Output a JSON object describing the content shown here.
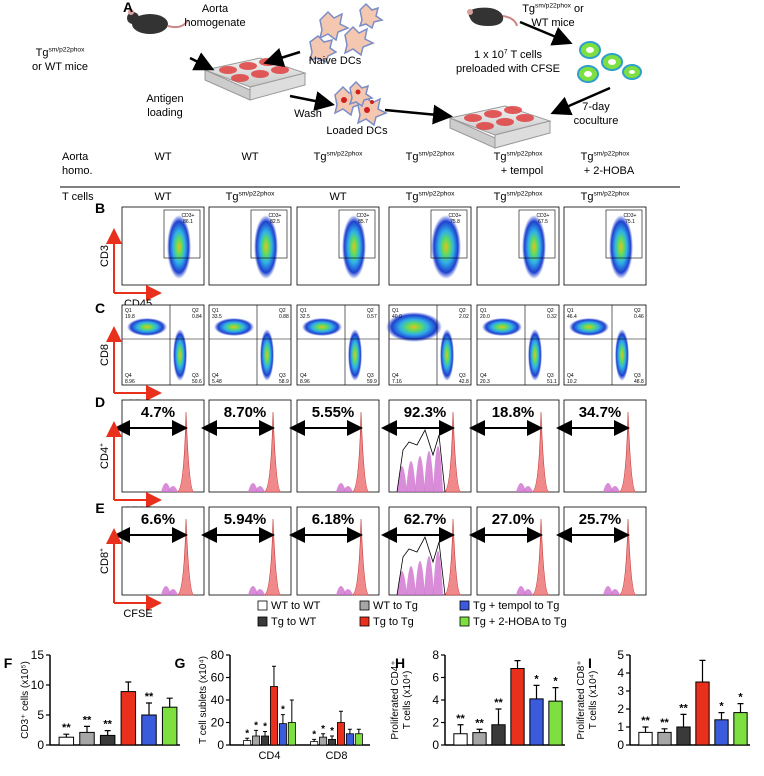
{
  "panel_labels": [
    "A",
    "B",
    "C",
    "D",
    "E",
    "F",
    "G",
    "H",
    "I"
  ],
  "schematic": {
    "mouse_left": {
      "base": "Tg",
      "sup": "sm/p22phox",
      "line2": "or WT mice"
    },
    "aorta": [
      "Aorta",
      "homogenate"
    ],
    "naive_dcs": "Naive DCs",
    "antigen_loading": [
      "Antigen",
      "loading"
    ],
    "wash": "Wash",
    "loaded_dcs": "Loaded DCs",
    "mouse_right": {
      "base": "Tg",
      "sup": "sm/p22phox",
      "post": " or",
      "line2": "WT mice"
    },
    "t_cells": {
      "pre": "1 x 10",
      "sup": "7",
      "post": " T cells",
      "line2": "preloaded with CFSE"
    },
    "coculture": [
      "7-day",
      "coculture"
    ]
  },
  "conditions": {
    "aorta_label": [
      "Aorta",
      "homo."
    ],
    "tcell_label": "T cells",
    "columns": [
      {
        "aorta": {
          "base": "WT"
        },
        "tcells": {
          "base": "WT"
        }
      },
      {
        "aorta": {
          "base": "WT"
        },
        "tcells": {
          "base": "Tg",
          "sup": "sm/p22phox"
        }
      },
      {
        "aorta": {
          "base": "Tg",
          "sup": "sm/p22phox"
        },
        "tcells": {
          "base": "WT"
        }
      },
      {
        "aorta": {
          "base": "Tg",
          "sup": "sm/p22phox"
        },
        "tcells": {
          "base": "Tg",
          "sup": "sm/p22phox"
        }
      },
      {
        "aorta": {
          "base": "Tg",
          "sup": "sm/p22phox",
          "extra": "+ tempol"
        },
        "tcells": {
          "base": "Tg",
          "sup": "sm/p22phox"
        }
      },
      {
        "aorta": {
          "base": "Tg",
          "sup": "sm/p22phox",
          "extra": "+ 2-HOBA"
        },
        "tcells": {
          "base": "Tg",
          "sup": "sm/p22phox"
        }
      }
    ]
  },
  "flow_b": {
    "ylabel": "CD3",
    "xlabel": "CD45",
    "gate_name": "CD3+",
    "gates": [
      "86.1",
      "82.5",
      "85.7",
      "75.8",
      "67.5",
      "75.1"
    ]
  },
  "flow_c": {
    "ylabel": "CD8",
    "xlabel": "CD4",
    "quadrant_names": [
      "Q1",
      "Q2",
      "Q3",
      "Q4"
    ],
    "plots": [
      [
        "19.8",
        "0.84",
        "50.6",
        "8.96"
      ],
      [
        "33.5",
        "0.88",
        "58.9",
        "5.48"
      ],
      [
        "32.5",
        "0.57",
        "59.9",
        "8.96"
      ],
      [
        "40.0",
        "2.02",
        "42.8",
        "7.16"
      ],
      [
        "20.0",
        "0.32",
        "51.1",
        "20.3"
      ],
      [
        "46.4",
        "0.46",
        "48.8",
        "10.2"
      ]
    ]
  },
  "flow_d": {
    "ylabel": {
      "base": "CD4",
      "sup": "+"
    },
    "xlabel": "CFSE",
    "percents": [
      "4.7%",
      "8.70%",
      "5.55%",
      "92.3%",
      "18.8%",
      "34.7%"
    ]
  },
  "flow_e": {
    "ylabel": {
      "base": "CD8",
      "sup": "+"
    },
    "xlabel": "CFSE",
    "percents": [
      "6.6%",
      "5.94%",
      "6.18%",
      "62.7%",
      "27.0%",
      "25.7%"
    ]
  },
  "chart_data": [
    {
      "type": "bar",
      "ylabel": "CD3⁺ cells (x10⁵)",
      "values": [
        1.3,
        2.1,
        1.6,
        8.9,
        5.0,
        6.3
      ],
      "errors": [
        0.5,
        1.0,
        0.8,
        1.6,
        2.0,
        1.5
      ],
      "significance": [
        "**",
        "**",
        "**",
        null,
        "**",
        null
      ],
      "colors": [
        "#ffffff",
        "#a6a6a6",
        "#3a3a3a",
        "#e8301c",
        "#3a5bdc",
        "#7ee040"
      ],
      "ylim": [
        0,
        15
      ],
      "yticks": [
        0,
        5,
        10,
        15
      ]
    },
    {
      "type": "grouped_bar",
      "ylabel": "T cell sublets (x10⁴)",
      "categories": [
        "CD4",
        "CD8"
      ],
      "series": [
        {
          "name": "WT to WT",
          "color": "#ffffff",
          "values": [
            4,
            3
          ],
          "errors": [
            2,
            2
          ],
          "significance": [
            "*",
            "*"
          ]
        },
        {
          "name": "WT to Tg",
          "color": "#a6a6a6",
          "values": [
            8,
            7
          ],
          "errors": [
            5,
            3
          ],
          "significance": [
            "*",
            "*"
          ]
        },
        {
          "name": "Tg to WT",
          "color": "#3a3a3a",
          "values": [
            8,
            5
          ],
          "errors": [
            4,
            3
          ],
          "significance": [
            "*",
            "*"
          ]
        },
        {
          "name": "Tg to Tg",
          "color": "#e8301c",
          "values": [
            52,
            20
          ],
          "errors": [
            18,
            10
          ],
          "significance": [
            null,
            null
          ]
        },
        {
          "name": "Tg + tempol to Tg",
          "color": "#3a5bdc",
          "values": [
            19,
            10
          ],
          "errors": [
            8,
            4
          ],
          "significance": [
            "*",
            null
          ]
        },
        {
          "name": "Tg + 2-HOBA to Tg",
          "color": "#7ee040",
          "values": [
            20,
            10
          ],
          "errors": [
            20,
            4
          ],
          "significance": [
            null,
            null
          ]
        }
      ],
      "ylim": [
        0,
        80
      ],
      "yticks": [
        0,
        20,
        40,
        60,
        80
      ]
    },
    {
      "type": "bar",
      "ylabel": [
        "Proliferated CD4⁺",
        "T cells (x10⁴)"
      ],
      "values": [
        1.0,
        1.1,
        1.8,
        6.8,
        4.1,
        3.9
      ],
      "errors": [
        0.8,
        0.3,
        1.4,
        0.7,
        1.2,
        1.2
      ],
      "significance": [
        "**",
        "**",
        "**",
        null,
        "*",
        "*"
      ],
      "colors": [
        "#ffffff",
        "#a6a6a6",
        "#3a3a3a",
        "#e8301c",
        "#3a5bdc",
        "#7ee040"
      ],
      "ylim": [
        0,
        8
      ],
      "yticks": [
        0,
        2,
        4,
        6,
        8
      ]
    },
    {
      "type": "bar",
      "ylabel": [
        "Proliferated CD8⁺",
        "T cells (x10⁴)"
      ],
      "values": [
        0.7,
        0.7,
        1.0,
        3.5,
        1.4,
        1.8
      ],
      "errors": [
        0.3,
        0.2,
        0.7,
        1.2,
        0.4,
        0.5
      ],
      "significance": [
        "**",
        "**",
        "**",
        null,
        "*",
        "*"
      ],
      "colors": [
        "#ffffff",
        "#a6a6a6",
        "#3a3a3a",
        "#e8301c",
        "#3a5bdc",
        "#7ee040"
      ],
      "ylim": [
        0,
        5
      ],
      "yticks": [
        0,
        1,
        2,
        3,
        4,
        5
      ]
    }
  ]
}
